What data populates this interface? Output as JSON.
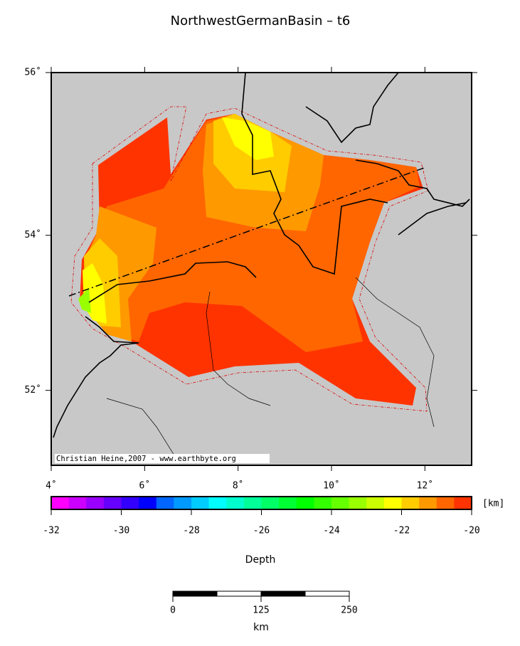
{
  "title": "NorthwestGermanBasin – t6",
  "map": {
    "lonlim": [
      4,
      13
    ],
    "latlim": [
      51,
      56
    ],
    "lonticks": [
      {
        "value": 4,
        "label": "4˚"
      },
      {
        "value": 6,
        "label": "6˚"
      },
      {
        "value": 8,
        "label": "8˚"
      },
      {
        "value": 10,
        "label": "10˚"
      },
      {
        "value": 12,
        "label": "12˚"
      }
    ],
    "latticks": [
      {
        "value": 52,
        "label": "52˚"
      },
      {
        "value": 54,
        "label": "54˚"
      },
      {
        "value": 56,
        "label": "56˚"
      }
    ],
    "credit": "Christian Heine,2007 - www.earthbyte.org"
  },
  "colorbar": {
    "label": "Depth",
    "unit": "[km]",
    "lim": [
      -32,
      -20
    ],
    "ticks": [
      -32,
      -30,
      -28,
      -26,
      -24,
      -22,
      -20
    ],
    "colors": [
      "#ff00ff",
      "#cc00ff",
      "#9900ff",
      "#6600ff",
      "#3300ff",
      "#0000ff",
      "#0066ff",
      "#0099ff",
      "#00ccff",
      "#00ffff",
      "#00ffcc",
      "#00ff99",
      "#00ff66",
      "#00ff33",
      "#00ff00",
      "#33ff00",
      "#66ff00",
      "#99ff00",
      "#ccff00",
      "#ffff00",
      "#ffcc00",
      "#ff9900",
      "#ff6600",
      "#ff3300"
    ]
  },
  "scalebar": {
    "unit": "km",
    "ticks": [
      0,
      125,
      250
    ]
  }
}
